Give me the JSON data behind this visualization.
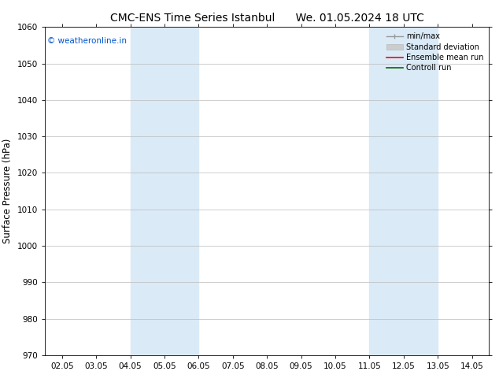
{
  "title_left": "CMC-ENS Time Series Istanbul",
  "title_right": "We. 01.05.2024 18 UTC",
  "ylabel": "Surface Pressure (hPa)",
  "ylim": [
    970,
    1060
  ],
  "yticks": [
    970,
    980,
    990,
    1000,
    1010,
    1020,
    1030,
    1040,
    1050,
    1060
  ],
  "xtick_labels": [
    "02.05",
    "03.05",
    "04.05",
    "05.05",
    "06.05",
    "07.05",
    "08.05",
    "09.05",
    "10.05",
    "11.05",
    "12.05",
    "13.05",
    "14.05"
  ],
  "xtick_values": [
    0,
    1,
    2,
    3,
    4,
    5,
    6,
    7,
    8,
    9,
    10,
    11,
    12
  ],
  "xlim": [
    -0.5,
    12.5
  ],
  "shaded_regions": [
    {
      "x_start": 2.0,
      "x_end": 4.0,
      "color": "#daeaf7"
    },
    {
      "x_start": 9.0,
      "x_end": 11.0,
      "color": "#daeaf7"
    }
  ],
  "watermark_text": "© weatheronline.in",
  "watermark_color": "#0055cc",
  "bg_color": "#ffffff",
  "grid_color": "#bbbbbb",
  "title_fontsize": 10,
  "tick_fontsize": 7.5,
  "ylabel_fontsize": 8.5
}
